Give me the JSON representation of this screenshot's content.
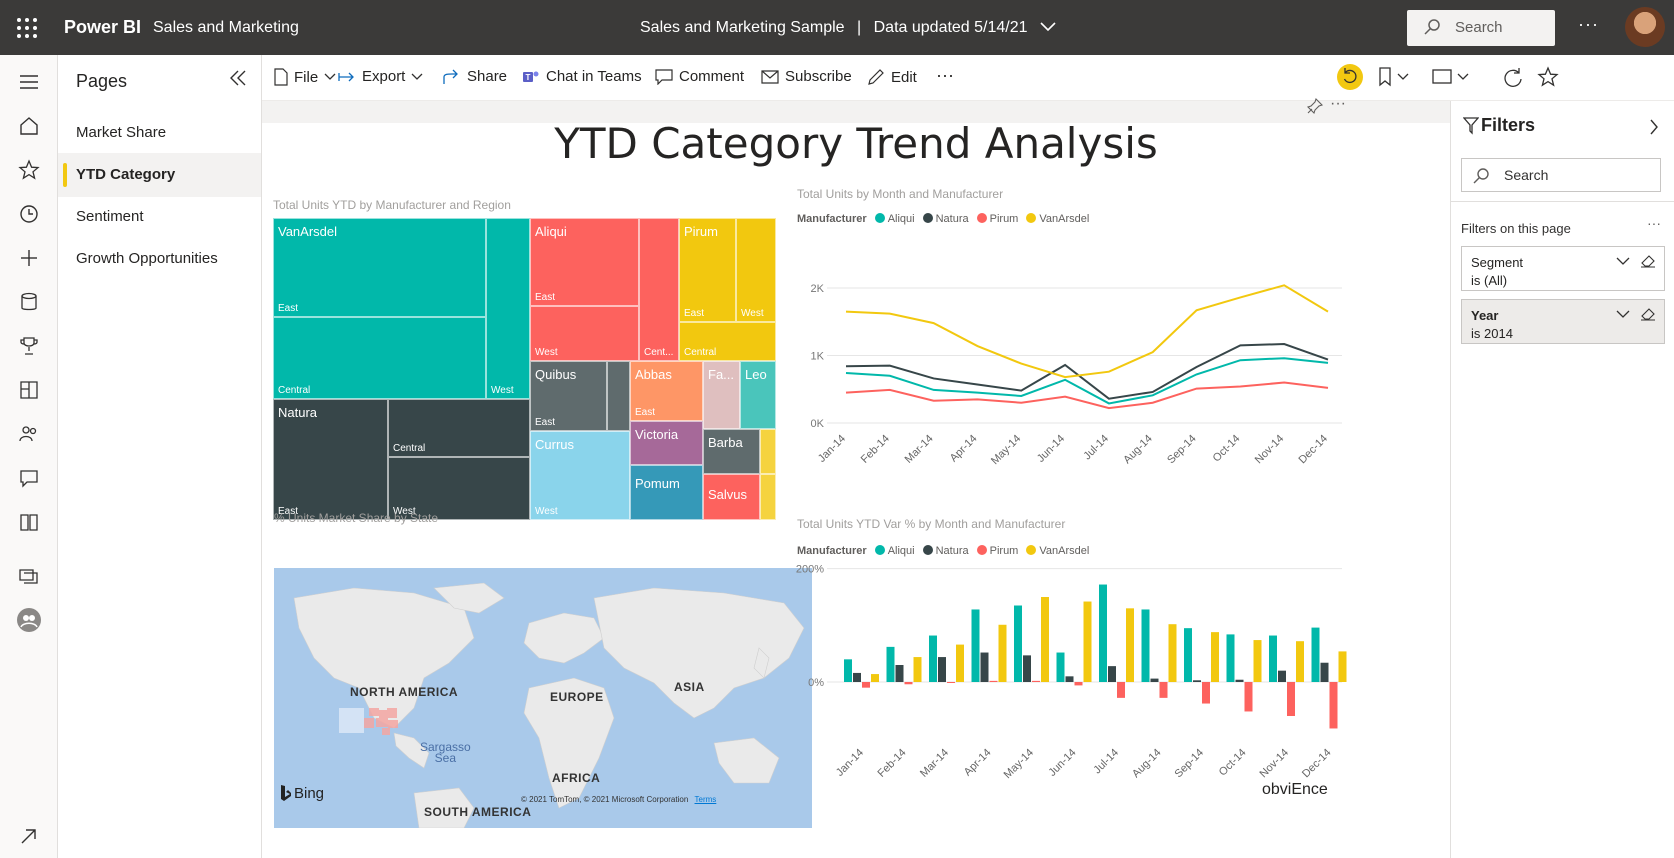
{
  "topbar": {
    "brand": "Power BI",
    "workspace": "Sales and Marketing",
    "report_name": "Sales and Marketing Sample",
    "separator": "|",
    "data_updated": "Data updated 5/14/21",
    "search_placeholder": "Search",
    "more": "···"
  },
  "pages_pane": {
    "title": "Pages",
    "items": [
      "Market Share",
      "YTD Category",
      "Sentiment",
      "Growth Opportunities"
    ],
    "active_index": 1
  },
  "actionbar": {
    "file": "File",
    "export": "Export",
    "share": "Share",
    "chat_in_teams": "Chat in Teams",
    "comment": "Comment",
    "subscribe": "Subscribe",
    "edit": "Edit",
    "more": "···"
  },
  "report": {
    "title": "YTD Category Trend Analysis",
    "footer_logo": "obviEnce",
    "visual_more": "···"
  },
  "treemap": {
    "title": "Total Units YTD by Manufacturer and Region",
    "tiles": {
      "vanarsdel": "VanArsdel",
      "aliqui": "Aliqui",
      "pirum": "Pirum",
      "natura": "Natura",
      "quibus": "Quibus",
      "abbas": "Abbas",
      "fa": "Fa...",
      "leo": "Leo",
      "currus": "Currus",
      "victoria": "Victoria",
      "barba": "Barba",
      "pomum": "Pomum",
      "salvus": "Salvus"
    },
    "regions": {
      "east": "East",
      "west": "West",
      "central": "Central",
      "cent_trunc": "Cent..."
    }
  },
  "map": {
    "title": "% Units Market Share by State",
    "labels": {
      "north_america": "NORTH AMERICA",
      "europe": "EUROPE",
      "asia": "ASIA",
      "africa": "AFRICA",
      "south_america": "SOUTH AMERICA",
      "sargasso": "Sargasso",
      "sea": "Sea"
    },
    "bing": "Bing",
    "copyright": "© 2021 TomTom, © 2021 Microsoft Corporation",
    "terms": "Terms"
  },
  "legend": {
    "label": "Manufacturer",
    "items": [
      "Aliqui",
      "Natura",
      "Pirum",
      "VanArsdel"
    ]
  },
  "colors": {
    "aliqui": "#01b8aa",
    "natura": "#374649",
    "pirum": "#fd625e",
    "vanarsdel": "#f2c80f",
    "topbar": "#3b3a39",
    "accent": "#f2c811"
  },
  "chart_data": [
    {
      "type": "line",
      "title": "Total Units by Month and Manufacturer",
      "x": [
        "Jan-14",
        "Feb-14",
        "Mar-14",
        "Apr-14",
        "May-14",
        "Jun-14",
        "Jul-14",
        "Aug-14",
        "Sep-14",
        "Oct-14",
        "Nov-14",
        "Dec-14"
      ],
      "y_ticks": [
        "0K",
        "1K",
        "2K"
      ],
      "ylim": [
        0,
        2400
      ],
      "series": [
        {
          "name": "Aliqui",
          "values": [
            740,
            700,
            490,
            450,
            400,
            640,
            290,
            410,
            720,
            930,
            960,
            890
          ]
        },
        {
          "name": "Natura",
          "values": [
            840,
            850,
            660,
            570,
            480,
            860,
            360,
            460,
            830,
            1150,
            1170,
            940
          ]
        },
        {
          "name": "Pirum",
          "values": [
            450,
            490,
            330,
            350,
            300,
            390,
            220,
            300,
            510,
            540,
            600,
            520
          ]
        },
        {
          "name": "VanArsdel",
          "values": [
            1650,
            1620,
            1480,
            1140,
            880,
            680,
            760,
            1050,
            1670,
            1860,
            2040,
            1650
          ]
        }
      ]
    },
    {
      "type": "bar",
      "title": "Total Units YTD Var % by Month and Manufacturer",
      "categories": [
        "Jan-14",
        "Feb-14",
        "Mar-14",
        "Apr-14",
        "May-14",
        "Jun-14",
        "Jul-14",
        "Aug-14",
        "Sep-14",
        "Oct-14",
        "Nov-14",
        "Dec-14"
      ],
      "y_ticks": [
        "0%",
        "200%"
      ],
      "ylim": [
        -90,
        210
      ],
      "series": [
        {
          "name": "Aliqui",
          "values": [
            40,
            62,
            82,
            128,
            135,
            52,
            172,
            128,
            95,
            84,
            82,
            96
          ]
        },
        {
          "name": "Natura",
          "values": [
            16,
            30,
            44,
            52,
            47,
            10,
            28,
            6,
            3,
            4,
            20,
            34
          ]
        },
        {
          "name": "Pirum",
          "values": [
            -10,
            -4,
            0,
            2,
            2,
            -6,
            -28,
            -28,
            -38,
            -52,
            -60,
            -82
          ]
        },
        {
          "name": "VanArsdel",
          "values": [
            14,
            44,
            66,
            101,
            150,
            142,
            130,
            102,
            88,
            74,
            72,
            54
          ]
        }
      ]
    }
  ],
  "filters": {
    "title": "Filters",
    "search_placeholder": "Search",
    "section": "Filters on this page",
    "more": "···",
    "cards": [
      {
        "name": "Segment",
        "value": "is (All)"
      },
      {
        "name": "Year",
        "value": "is 2014"
      }
    ]
  }
}
